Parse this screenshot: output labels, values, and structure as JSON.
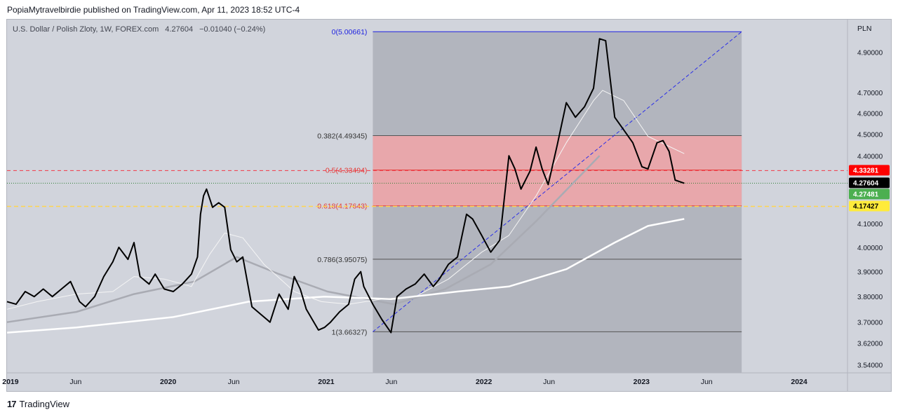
{
  "header": {
    "publisher": "PopiaMytravelbirdie published on TradingView.com, Apr 11, 2023 18:52 UTC-4"
  },
  "symbol_line": {
    "name": "U.S. Dollar / Polish Zloty, 1W, FOREX.com",
    "last": "4.27604",
    "change": "−0.01040 (−0.24%)"
  },
  "axis_title": "PLN",
  "footer": {
    "logo": "17",
    "brand": "TradingView"
  },
  "colors": {
    "price": "#000000",
    "ma_fast": "#f5f5f5",
    "ma_mid": "#a9abb3",
    "ma_slow": "#ffffff",
    "fib_zone_box": "#b2b5be",
    "fib_golden_zone": "#e8a7ab",
    "trend": "#2a2ee8",
    "red_line": "#f23645",
    "yellow_line": "#ffd54f",
    "tag_red": "#ff0000",
    "tag_black": "#000000",
    "tag_green": "#4caf50",
    "tag_yellow": "#ffeb3b"
  },
  "chart_data": {
    "type": "line",
    "title": "U.S. Dollar / Polish Zloty, 1W, FOREX.com",
    "xlabel": "",
    "ylabel": "PLN",
    "x_ticks": [
      "2019",
      "Jun",
      "2020",
      "Jun",
      "2021",
      "Jun",
      "2022",
      "Jun",
      "2023",
      "Jun",
      "2024"
    ],
    "x_tick_dates": [
      "2019-01-01",
      "2019-06-01",
      "2020-01-01",
      "2020-06-01",
      "2021-01-01",
      "2021-06-01",
      "2022-01-01",
      "2022-06-01",
      "2023-01-01",
      "2023-06-01",
      "2024-01-01"
    ],
    "x_range": [
      "2018-12-24",
      "2024-04-22"
    ],
    "y_ticks": [
      3.54,
      3.62,
      3.7,
      3.8,
      3.9,
      4.0,
      4.1,
      4.4,
      4.5,
      4.6,
      4.7,
      4.9
    ],
    "y_tick_labels": [
      "3.54000",
      "3.62000",
      "3.70000",
      "3.80000",
      "3.90000",
      "4.00000",
      "4.10000",
      "4.40000",
      "4.50000",
      "4.60000",
      "4.70000",
      "4.90000"
    ],
    "ylim": [
      3.51,
      5.07
    ],
    "y_scale": "log",
    "series": [
      {
        "role": "price",
        "points": [
          [
            "2018-12-24",
            3.78
          ],
          [
            "2019-01-14",
            3.77
          ],
          [
            "2019-02-04",
            3.82
          ],
          [
            "2019-02-25",
            3.8
          ],
          [
            "2019-03-18",
            3.83
          ],
          [
            "2019-04-08",
            3.8
          ],
          [
            "2019-04-29",
            3.83
          ],
          [
            "2019-05-20",
            3.86
          ],
          [
            "2019-06-10",
            3.78
          ],
          [
            "2019-06-24",
            3.76
          ],
          [
            "2019-07-15",
            3.8
          ],
          [
            "2019-08-05",
            3.88
          ],
          [
            "2019-08-26",
            3.94
          ],
          [
            "2019-09-09",
            4.0
          ],
          [
            "2019-09-30",
            3.95
          ],
          [
            "2019-10-14",
            4.02
          ],
          [
            "2019-10-28",
            3.88
          ],
          [
            "2019-11-18",
            3.85
          ],
          [
            "2019-12-02",
            3.89
          ],
          [
            "2019-12-23",
            3.83
          ],
          [
            "2020-01-13",
            3.82
          ],
          [
            "2020-02-03",
            3.85
          ],
          [
            "2020-02-24",
            3.89
          ],
          [
            "2020-03-09",
            3.96
          ],
          [
            "2020-03-16",
            4.14
          ],
          [
            "2020-03-23",
            4.22
          ],
          [
            "2020-03-30",
            4.25
          ],
          [
            "2020-04-13",
            4.17
          ],
          [
            "2020-04-27",
            4.19
          ],
          [
            "2020-05-11",
            4.17
          ],
          [
            "2020-05-25",
            3.99
          ],
          [
            "2020-06-08",
            3.94
          ],
          [
            "2020-06-22",
            3.96
          ],
          [
            "2020-07-13",
            3.76
          ],
          [
            "2020-08-03",
            3.73
          ],
          [
            "2020-08-24",
            3.7
          ],
          [
            "2020-09-14",
            3.81
          ],
          [
            "2020-10-05",
            3.75
          ],
          [
            "2020-10-19",
            3.88
          ],
          [
            "2020-11-02",
            3.83
          ],
          [
            "2020-11-16",
            3.75
          ],
          [
            "2020-11-30",
            3.71
          ],
          [
            "2020-12-14",
            3.67
          ],
          [
            "2020-12-28",
            3.68
          ],
          [
            "2021-01-11",
            3.7
          ],
          [
            "2021-02-01",
            3.74
          ],
          [
            "2021-02-22",
            3.77
          ],
          [
            "2021-03-08",
            3.87
          ],
          [
            "2021-03-22",
            3.9
          ],
          [
            "2021-03-29",
            3.84
          ],
          [
            "2021-04-19",
            3.77
          ],
          [
            "2021-05-10",
            3.71
          ],
          [
            "2021-05-31",
            3.66
          ],
          [
            "2021-06-14",
            3.8
          ],
          [
            "2021-07-05",
            3.83
          ],
          [
            "2021-07-26",
            3.85
          ],
          [
            "2021-08-16",
            3.89
          ],
          [
            "2021-09-06",
            3.84
          ],
          [
            "2021-09-20",
            3.87
          ],
          [
            "2021-10-11",
            3.93
          ],
          [
            "2021-11-01",
            3.96
          ],
          [
            "2021-11-22",
            4.14
          ],
          [
            "2021-12-06",
            4.12
          ],
          [
            "2021-12-27",
            4.05
          ],
          [
            "2022-01-17",
            3.98
          ],
          [
            "2022-02-07",
            4.03
          ],
          [
            "2022-02-28",
            4.4
          ],
          [
            "2022-03-14",
            4.34
          ],
          [
            "2022-03-28",
            4.25
          ],
          [
            "2022-04-18",
            4.33
          ],
          [
            "2022-05-02",
            4.44
          ],
          [
            "2022-05-16",
            4.34
          ],
          [
            "2022-05-30",
            4.27
          ],
          [
            "2022-06-20",
            4.45
          ],
          [
            "2022-07-11",
            4.65
          ],
          [
            "2022-08-01",
            4.58
          ],
          [
            "2022-08-22",
            4.63
          ],
          [
            "2022-09-12",
            4.72
          ],
          [
            "2022-09-26",
            4.97
          ],
          [
            "2022-10-10",
            4.96
          ],
          [
            "2022-10-31",
            4.58
          ],
          [
            "2022-11-21",
            4.52
          ],
          [
            "2022-12-12",
            4.46
          ],
          [
            "2023-01-02",
            4.35
          ],
          [
            "2023-01-16",
            4.34
          ],
          [
            "2023-02-06",
            4.46
          ],
          [
            "2023-02-20",
            4.47
          ],
          [
            "2023-03-06",
            4.42
          ],
          [
            "2023-03-20",
            4.29
          ],
          [
            "2023-04-10",
            4.276
          ]
        ]
      },
      {
        "role": "ma_fast",
        "points": [
          [
            "2018-12-24",
            3.75
          ],
          [
            "2019-03-04",
            3.78
          ],
          [
            "2019-06-03",
            3.81
          ],
          [
            "2019-08-26",
            3.82
          ],
          [
            "2019-10-14",
            3.88
          ],
          [
            "2019-12-23",
            3.87
          ],
          [
            "2020-02-24",
            3.84
          ],
          [
            "2020-04-06",
            3.97
          ],
          [
            "2020-05-11",
            4.06
          ],
          [
            "2020-06-22",
            4.04
          ],
          [
            "2020-08-10",
            3.93
          ],
          [
            "2020-10-19",
            3.82
          ],
          [
            "2020-12-21",
            3.78
          ],
          [
            "2021-02-22",
            3.77
          ],
          [
            "2021-05-10",
            3.79
          ],
          [
            "2021-07-26",
            3.8
          ],
          [
            "2021-10-11",
            3.87
          ],
          [
            "2021-12-27",
            3.98
          ],
          [
            "2022-02-28",
            4.05
          ],
          [
            "2022-05-02",
            4.22
          ],
          [
            "2022-07-11",
            4.46
          ],
          [
            "2022-09-12",
            4.66
          ],
          [
            "2022-10-03",
            4.71
          ],
          [
            "2022-11-21",
            4.66
          ],
          [
            "2023-01-16",
            4.49
          ],
          [
            "2023-04-10",
            4.41
          ]
        ]
      },
      {
        "role": "ma_mid",
        "points": [
          [
            "2018-12-24",
            3.7
          ],
          [
            "2019-06-03",
            3.74
          ],
          [
            "2019-10-14",
            3.81
          ],
          [
            "2020-03-02",
            3.86
          ],
          [
            "2020-06-08",
            3.96
          ],
          [
            "2020-09-14",
            3.89
          ],
          [
            "2021-01-04",
            3.82
          ],
          [
            "2021-06-07",
            3.77
          ],
          [
            "2021-10-04",
            3.83
          ],
          [
            "2022-01-17",
            3.93
          ],
          [
            "2022-05-02",
            4.11
          ],
          [
            "2022-09-26",
            4.4
          ]
        ]
      },
      {
        "role": "ma_slow",
        "points": [
          [
            "2018-12-24",
            3.66
          ],
          [
            "2019-06-03",
            3.68
          ],
          [
            "2020-01-13",
            3.72
          ],
          [
            "2020-07-06",
            3.78
          ],
          [
            "2020-12-28",
            3.8
          ],
          [
            "2021-05-31",
            3.79
          ],
          [
            "2021-11-01",
            3.82
          ],
          [
            "2022-02-28",
            3.84
          ],
          [
            "2022-07-11",
            3.91
          ],
          [
            "2022-10-31",
            4.02
          ],
          [
            "2023-01-16",
            4.09
          ],
          [
            "2023-04-10",
            4.12
          ]
        ]
      }
    ],
    "fibonacci": {
      "start": "2021-04-19",
      "end": "2023-08-21",
      "levels": [
        {
          "label": "0(5.00661)",
          "value": 5.00661
        },
        {
          "label": "0.382(4.49345)",
          "value": 4.49345
        },
        {
          "label": "0.5(4.33494)",
          "value": 4.33494
        },
        {
          "label": "0.618(4.17643)",
          "value": 4.17643
        },
        {
          "label": "0.786(3.95075)",
          "value": 3.95075
        },
        {
          "label": "1(3.66327)",
          "value": 3.66327
        }
      ]
    },
    "trend_line": [
      [
        "2021-04-19",
        3.66327
      ],
      [
        "2023-08-21",
        5.00661
      ]
    ],
    "horizontal_lines": [
      {
        "role": "red",
        "value": 4.33281
      },
      {
        "role": "dotted",
        "value": 4.27604
      },
      {
        "role": "yellow",
        "value": 4.17427
      }
    ],
    "price_tags": [
      {
        "label": "4.33281",
        "value": 4.33281,
        "color_role": "tag_red"
      },
      {
        "label": "4.27604",
        "value": 4.27604,
        "color_role": "tag_black"
      },
      {
        "label": "4.27481",
        "value": 4.27481,
        "color_role": "tag_green"
      },
      {
        "label": "4.17427",
        "value": 4.17427,
        "color_role": "tag_yellow"
      }
    ]
  }
}
